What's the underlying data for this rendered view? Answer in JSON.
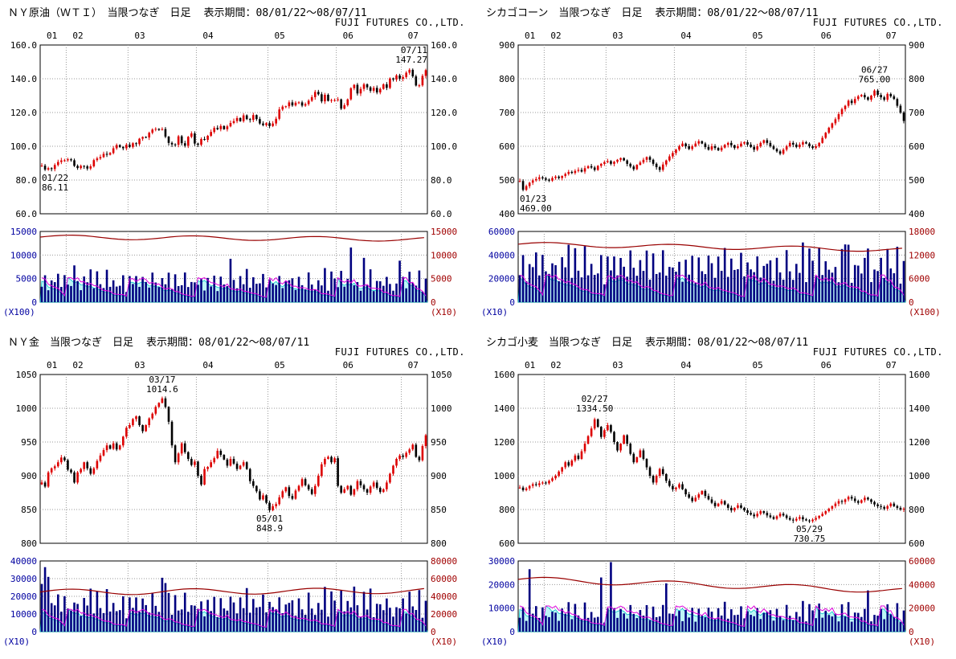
{
  "company": "FUJI FUTURES CO.,LTD.",
  "period_label": "表示期間：08/01/22～08/07/11",
  "chart_data": [
    {
      "type": "candlestick",
      "title": "ＮＹ原油（ＷＴＩ）　当限つなぎ　日足",
      "months": [
        "01",
        "02",
        "03",
        "04",
        "05",
        "06",
        "07"
      ],
      "month_boundaries": [
        0,
        8,
        27,
        48,
        70,
        91,
        111
      ],
      "price_axis": {
        "max": 160,
        "min": 60,
        "ticks": [
          "160.0",
          "140.0",
          "120.0",
          "100.0",
          "80.0",
          "60.0"
        ]
      },
      "annotations": [
        {
          "date": "07/11",
          "value": "147.27",
          "day": 118,
          "price": 147.27,
          "pos": "above"
        },
        {
          "date": "01/22",
          "value": "86.11",
          "day": 1,
          "price": 86.11,
          "pos": "below"
        }
      ],
      "closes": [
        88.5,
        86.2,
        87.0,
        86.5,
        88.9,
        90.7,
        91.6,
        91.7,
        92.3,
        91.7,
        88.4,
        87.1,
        88.4,
        88.1,
        86.8,
        88.1,
        91.8,
        92.8,
        93.6,
        95.5,
        95.0,
        96.0,
        98.8,
        100.7,
        99.6,
        98.8,
        100.9,
        99.6,
        101.8,
        101.3,
        104.5,
        105.5,
        105.2,
        108.0,
        109.9,
        110.3,
        109.7,
        110.2,
        105.7,
        102.0,
        101.1,
        100.9,
        105.9,
        101.8,
        100.3,
        105.6,
        107.6,
        101.6,
        100.9,
        104.3,
        103.8,
        106.2,
        108.5,
        110.9,
        110.1,
        112.0,
        110.1,
        111.8,
        113.8,
        114.9,
        116.7,
        114.9,
        118.3,
        116.1,
        115.6,
        118.5,
        116.1,
        113.5,
        112.5,
        113.7,
        112.0,
        113.5,
        116.3,
        121.8,
        123.5,
        123.7,
        126.0,
        124.2,
        125.8,
        126.0,
        124.1,
        125.0,
        127.0,
        129.1,
        132.2,
        130.8,
        126.6,
        130.5,
        126.9,
        127.4,
        127.4,
        127.8,
        122.3,
        124.3,
        127.8,
        134.4,
        136.4,
        131.3,
        134.0,
        136.7,
        134.9,
        132.9,
        134.6,
        131.9,
        134.0,
        136.7,
        134.6,
        140.2,
        139.6,
        142.0,
        140.0,
        141.0,
        143.6,
        145.3,
        141.4,
        136.0,
        136.1,
        141.7,
        145.1
      ],
      "volume": {
        "left_ticks": [
          "15000",
          "10000",
          "5000",
          "0"
        ],
        "left_unit": "(X100)",
        "right_ticks": [
          "15000",
          "10000",
          "5000",
          "0"
        ],
        "right_unit": "(X10)",
        "left_max": 15000,
        "bar_cycle": [
          3200,
          4800,
          2600,
          5400,
          3900,
          6100,
          2900,
          5100,
          4300,
          3300,
          5800,
          4100,
          2700,
          4900,
          3600,
          6400,
          3000,
          5500,
          4200,
          3500,
          6000,
          2800,
          4600,
          3800
        ],
        "bar_spikes": {
          "10": 7800,
          "58": 9200,
          "95": 11600,
          "99": 9400,
          "110": 8800
        },
        "oi_max": 4500,
        "redline": {
          "base": 0.92,
          "slope": 0.03,
          "amp": 0.03
        }
      }
    },
    {
      "type": "candlestick",
      "title": "シカゴコーン　当限つなぎ　日足",
      "months": [
        "01",
        "02",
        "03",
        "04",
        "05",
        "06",
        "07"
      ],
      "month_boundaries": [
        0,
        8,
        27,
        48,
        70,
        91,
        111
      ],
      "price_axis": {
        "max": 900,
        "min": 400,
        "ticks": [
          "900",
          "800",
          "700",
          "600",
          "500",
          "400"
        ]
      },
      "annotations": [
        {
          "date": "06/27",
          "value": "765.00",
          "day": 109,
          "price": 765,
          "pos": "above"
        },
        {
          "date": "01/23",
          "value": "469.00",
          "day": 1,
          "price": 469,
          "pos": "below"
        }
      ],
      "closes": [
        497,
        471,
        482,
        492,
        499,
        503,
        508,
        505,
        501,
        498,
        506,
        510,
        506,
        512,
        518,
        524,
        521,
        527,
        530,
        525,
        535,
        541,
        537,
        530,
        542,
        548,
        553,
        556,
        548,
        554,
        560,
        565,
        558,
        548,
        540,
        532,
        545,
        552,
        560,
        568,
        560,
        548,
        538,
        530,
        546,
        558,
        570,
        580,
        590,
        600,
        608,
        600,
        592,
        600,
        608,
        615,
        608,
        598,
        590,
        600,
        595,
        588,
        596,
        604,
        610,
        603,
        595,
        600,
        608,
        612,
        605,
        598,
        590,
        600,
        610,
        618,
        610,
        600,
        592,
        585,
        578,
        590,
        600,
        610,
        605,
        598,
        605,
        612,
        608,
        600,
        595,
        600,
        610,
        625,
        640,
        655,
        668,
        680,
        695,
        710,
        720,
        735,
        728,
        740,
        748,
        752,
        745,
        738,
        750,
        765,
        752,
        745,
        738,
        755,
        748,
        740,
        720,
        700,
        675
      ],
      "volume": {
        "left_ticks": [
          "60000",
          "40000",
          "20000",
          "0"
        ],
        "left_unit": "(X10)",
        "right_ticks": [
          "18000",
          "12000",
          "6000",
          "0"
        ],
        "right_unit": "(X100)",
        "left_max": 60000,
        "bar_cycle": [
          22400,
          33600,
          18200,
          37800,
          27300,
          42700,
          20300,
          35700,
          30100,
          23100,
          40600,
          28700,
          18900,
          34300,
          25200,
          44800,
          21000,
          38500,
          29400,
          24500,
          42000,
          19600,
          32200,
          26600
        ],
        "bar_spikes": {
          "20": 47500,
          "63": 46000,
          "100": 49000,
          "107": 45500
        },
        "oi_max": 20000,
        "redline": {
          "base": 0.82,
          "slope": 0.08,
          "amp": 0.03
        }
      }
    },
    {
      "type": "candlestick",
      "title": "ＮＹ金　当限つなぎ　日足",
      "months": [
        "01",
        "02",
        "03",
        "04",
        "05",
        "06",
        "07"
      ],
      "month_boundaries": [
        0,
        8,
        27,
        48,
        70,
        91,
        111
      ],
      "price_axis": {
        "max": 1050,
        "min": 800,
        "ticks": [
          "1050",
          "1000",
          "950",
          "900",
          "850",
          "800"
        ]
      },
      "annotations": [
        {
          "date": "03/17",
          "value": "1014.6",
          "day": 37,
          "price": 1014.6,
          "pos": "above"
        },
        {
          "date": "05/01",
          "value": "848.9",
          "day": 70,
          "price": 848.9,
          "pos": "below"
        }
      ],
      "closes": [
        890,
        884,
        905,
        911,
        914,
        920,
        927,
        923,
        909,
        905,
        890,
        905,
        910,
        920,
        911,
        903,
        911,
        922,
        930,
        938,
        945,
        940,
        948,
        939,
        945,
        958,
        971,
        975,
        984,
        988,
        975,
        966,
        975,
        985,
        992,
        1002,
        1008,
        1014.6,
        1002,
        980,
        945,
        920,
        933,
        948,
        935,
        925,
        916,
        921,
        900,
        887,
        910,
        913,
        920,
        926,
        937,
        931,
        924,
        915,
        925,
        918,
        910,
        915,
        920,
        910,
        892,
        885,
        877,
        865,
        871,
        860,
        849,
        855,
        858,
        868,
        877,
        883,
        870,
        866,
        878,
        885,
        895,
        886,
        880,
        873,
        885,
        900,
        917,
        925,
        928,
        920,
        926,
        885,
        875,
        880,
        885,
        872,
        880,
        892,
        886,
        880,
        875,
        884,
        890,
        882,
        876,
        880,
        890,
        903,
        915,
        925,
        930,
        928,
        934,
        939,
        946,
        928,
        923,
        944,
        960
      ],
      "volume": {
        "left_ticks": [
          "40000",
          "30000",
          "20000",
          "10000",
          "0"
        ],
        "left_unit": "(X10)",
        "right_ticks": [
          "80000",
          "60000",
          "40000",
          "20000",
          "0"
        ],
        "right_unit": "(X10)",
        "left_max": 40000,
        "bar_cycle": [
          11200,
          16800,
          9100,
          18900,
          13650,
          21350,
          10150,
          17850,
          15050,
          11550,
          20300,
          14350,
          9450,
          17150,
          12600,
          22400,
          10500,
          19250,
          14700,
          12250,
          21000,
          9800,
          16100,
          13300
        ],
        "bar_spikes": {
          "0": 27000,
          "1": 36500,
          "2": 31000,
          "37": 30500,
          "38": 27500,
          "96": 25500
        },
        "oi_max": 11000,
        "redline": {
          "base": 0.56,
          "slope": -0.02,
          "amp": 0.04
        }
      }
    },
    {
      "type": "candlestick",
      "title": "シカゴ小麦　当限つなぎ　日足",
      "months": [
        "01",
        "02",
        "03",
        "04",
        "05",
        "06",
        "07"
      ],
      "month_boundaries": [
        0,
        8,
        27,
        48,
        70,
        91,
        111
      ],
      "price_axis": {
        "max": 1600,
        "min": 600,
        "ticks": [
          "1600",
          "1400",
          "1200",
          "1000",
          "800",
          "600"
        ]
      },
      "annotations": [
        {
          "date": "02/27",
          "value": "1334.50",
          "day": 23,
          "price": 1334.5,
          "pos": "above"
        },
        {
          "date": "05/29",
          "value": "730.75",
          "day": 89,
          "price": 730.75,
          "pos": "below"
        }
      ],
      "closes": [
        930,
        915,
        925,
        940,
        950,
        945,
        955,
        960,
        955,
        970,
        985,
        1000,
        1025,
        1050,
        1080,
        1060,
        1090,
        1120,
        1100,
        1145,
        1190,
        1235,
        1280,
        1334.5,
        1290,
        1230,
        1270,
        1300,
        1260,
        1200,
        1150,
        1190,
        1240,
        1190,
        1130,
        1080,
        1110,
        1150,
        1100,
        1050,
        1000,
        960,
        1000,
        1040,
        1010,
        970,
        940,
        920,
        930,
        950,
        920,
        890,
        870,
        850,
        870,
        890,
        910,
        880,
        860,
        840,
        820,
        835,
        850,
        830,
        810,
        795,
        810,
        825,
        810,
        795,
        780,
        770,
        760,
        775,
        790,
        780,
        765,
        755,
        745,
        760,
        775,
        765,
        750,
        740,
        735,
        745,
        755,
        742,
        735,
        731,
        740,
        750,
        762,
        775,
        790,
        805,
        820,
        835,
        850,
        845,
        860,
        875,
        865,
        850,
        840,
        855,
        870,
        860,
        845,
        830,
        820,
        815,
        805,
        820,
        835,
        820,
        810,
        800,
        805
      ],
      "volume": {
        "left_ticks": [
          "30000",
          "20000",
          "10000",
          "0"
        ],
        "left_unit": "(X10)",
        "right_ticks": [
          "60000",
          "40000",
          "20000",
          "0"
        ],
        "right_unit": "(X10)",
        "left_max": 30000,
        "bar_cycle": [
          5760,
          8640,
          4680,
          9720,
          7020,
          10980,
          5220,
          9180,
          7740,
          5940,
          10440,
          7380,
          4860,
          8820,
          6480,
          11520,
          5400,
          9900,
          7560,
          6300,
          10800,
          5040,
          8280,
          6840
        ],
        "bar_spikes": {
          "3": 26500,
          "25": 23000,
          "28": 29500,
          "45": 20500,
          "107": 17500
        },
        "oi_max": 9500,
        "redline": {
          "base": 0.74,
          "slope": 0.16,
          "amp": 0.04
        }
      }
    }
  ]
}
